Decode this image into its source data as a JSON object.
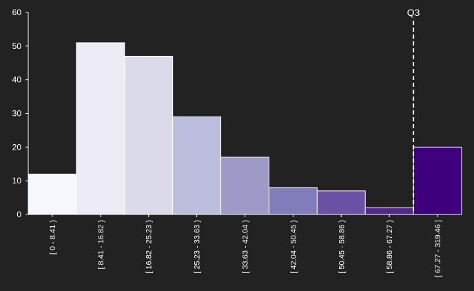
{
  "chart_data": {
    "type": "bar",
    "title": "",
    "xlabel": "",
    "ylabel": "",
    "ylim": [
      0,
      60
    ],
    "yticks": [
      0,
      10,
      20,
      30,
      40,
      50,
      60
    ],
    "grid": false,
    "categories": [
      "[ 0 - 8.41 )",
      "[ 8.41 - 16.82 )",
      "[ 16.82 - 25.23 )",
      "[ 25.23 - 33.63 )",
      "[ 33.63 - 42.04 )",
      "[ 42.04 - 50.45 )",
      "[ 50.45 - 58.86 )",
      "[ 58.86 - 67.27 )",
      "[ 67.27 - 319.46 ]"
    ],
    "values": [
      12,
      51,
      47,
      29,
      17,
      8,
      7,
      2,
      20
    ],
    "bar_colors": [
      "#f7f8fe",
      "#edebf6",
      "#dadaea",
      "#bcbddc",
      "#9e9ac8",
      "#807dba",
      "#6a51a3",
      "#54278f",
      "#3f007d"
    ],
    "marker": {
      "label": "Q3",
      "position": "boundary before last bin",
      "style": "dashed",
      "color": "#ffffff"
    }
  }
}
